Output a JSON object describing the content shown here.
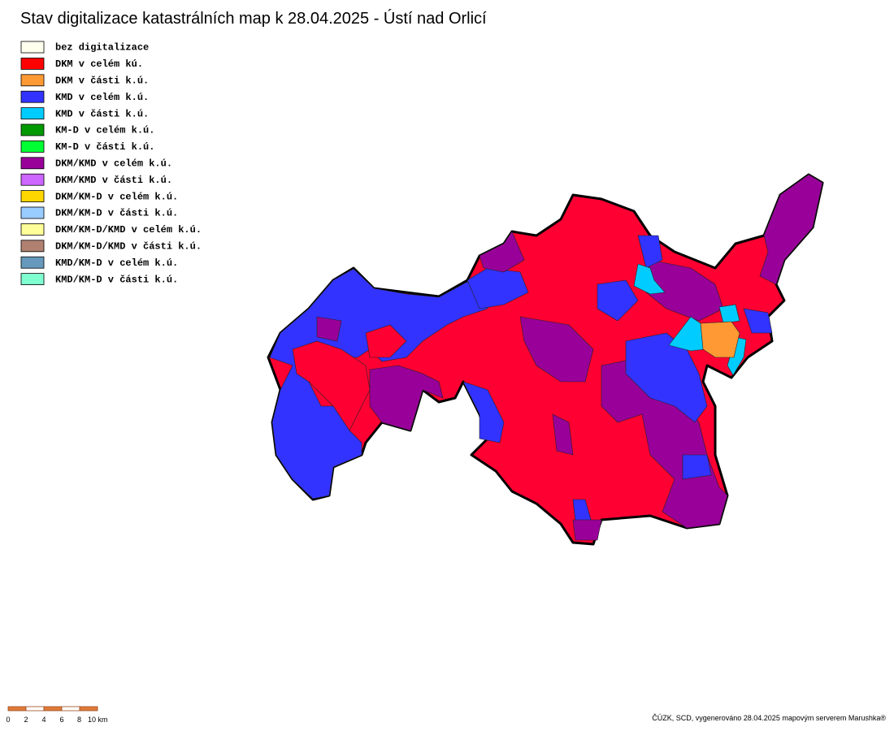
{
  "title": "Stav digitalizace katastrálních map k 28.04.2025 - Ústí nad Orlicí",
  "legend": [
    {
      "label": "bez digitalizace",
      "color": "#ffffee"
    },
    {
      "label": "DKM v celém kú.",
      "color": "#ff0000"
    },
    {
      "label": "DKM v části k.ú.",
      "color": "#ff9933"
    },
    {
      "label": "KMD v celém k.ú.",
      "color": "#3333ff"
    },
    {
      "label": "KMD v části k.ú.",
      "color": "#00ccff"
    },
    {
      "label": "KM-D v celém k.ú.",
      "color": "#009900"
    },
    {
      "label": "KM-D v části k.ú.",
      "color": "#00ff33"
    },
    {
      "label": "DKM/KMD v celém k.ú.",
      "color": "#990099"
    },
    {
      "label": "DKM/KMD v části k.ú.",
      "color": "#cc66ff"
    },
    {
      "label": "DKM/KM-D v celém k.ú.",
      "color": "#ffd700"
    },
    {
      "label": "DKM/KM-D v části k.ú.",
      "color": "#99ccff"
    },
    {
      "label": "DKM/KM-D/KMD v celém k.ú.",
      "color": "#ffff99"
    },
    {
      "label": "DKM/KM-D/KMD v části k.ú.",
      "color": "#b08070"
    },
    {
      "label": "KMD/KM-D v celém k.ú.",
      "color": "#6699bb"
    },
    {
      "label": "KMD/KM-D v části k.ú.",
      "color": "#80ffd0"
    }
  ],
  "scale": {
    "labels": [
      "0",
      "2",
      "4",
      "6",
      "8",
      "10 km"
    ]
  },
  "footer": "ČÚZK, SCD, vygenerováno 28.04.2025 mapovým serverem Marushka®"
}
